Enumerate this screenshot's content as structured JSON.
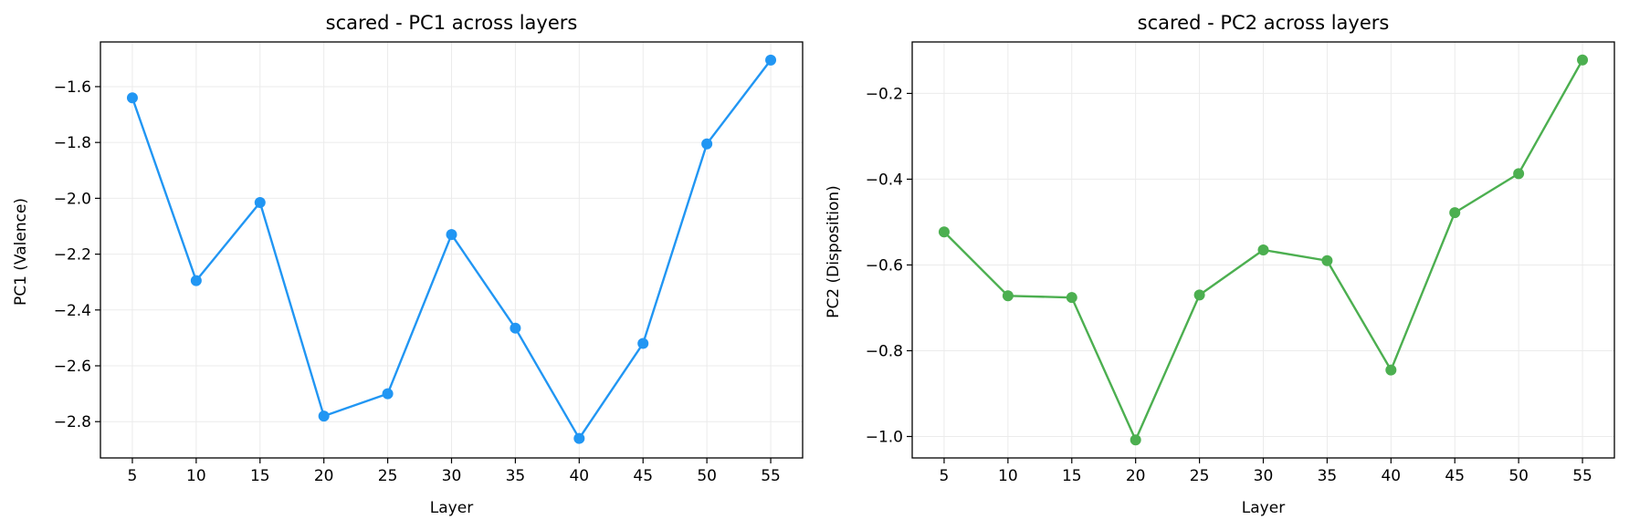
{
  "chart_data": [
    {
      "type": "line",
      "title": "scared - PC1 across layers",
      "xlabel": "Layer",
      "ylabel": "PC1 (Valence)",
      "x": [
        5,
        10,
        15,
        20,
        25,
        30,
        35,
        40,
        45,
        50,
        55
      ],
      "xticks": [
        "5",
        "10",
        "15",
        "20",
        "25",
        "30",
        "35",
        "40",
        "45",
        "50",
        "55"
      ],
      "xlim": [
        2.5,
        57.5
      ],
      "ylim": [
        -2.93,
        -1.44
      ],
      "yticks": [
        "−2.8",
        "−2.6",
        "−2.4",
        "−2.2",
        "−2.0",
        "−1.8",
        "−1.6"
      ],
      "ytick_values": [
        -2.8,
        -2.6,
        -2.4,
        -2.2,
        -2.0,
        -1.8,
        -1.6
      ],
      "grid": true,
      "color": "#2196F3",
      "series": [
        {
          "values": [
            -1.64,
            -2.295,
            -2.015,
            -2.78,
            -2.7,
            -2.13,
            -2.465,
            -2.86,
            -2.52,
            -1.805,
            -1.505
          ]
        }
      ]
    },
    {
      "type": "line",
      "title": "scared - PC2 across layers",
      "xlabel": "Layer",
      "ylabel": "PC2 (Disposition)",
      "x": [
        5,
        10,
        15,
        20,
        25,
        30,
        35,
        40,
        45,
        50,
        55
      ],
      "xticks": [
        "5",
        "10",
        "15",
        "20",
        "25",
        "30",
        "35",
        "40",
        "45",
        "50",
        "55"
      ],
      "xlim": [
        2.5,
        57.5
      ],
      "ylim": [
        -1.05,
        -0.08
      ],
      "yticks": [
        "−1.0",
        "−0.8",
        "−0.6",
        "−0.4",
        "−0.2"
      ],
      "ytick_values": [
        -1.0,
        -0.8,
        -0.6,
        -0.4,
        -0.2
      ],
      "grid": true,
      "color": "#4CAF50",
      "series": [
        {
          "values": [
            -0.523,
            -0.672,
            -0.676,
            -1.008,
            -0.67,
            -0.565,
            -0.59,
            -0.845,
            -0.478,
            -0.387,
            -0.122
          ]
        }
      ]
    }
  ]
}
